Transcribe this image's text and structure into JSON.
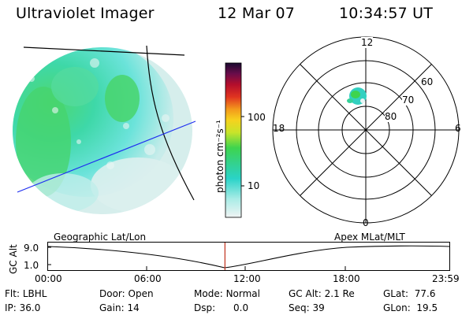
{
  "header": {
    "title": "Ultraviolet Imager",
    "date": "12 Mar 07",
    "time": "10:34:57 UT"
  },
  "colorbar": {
    "unit_label": "photon cm⁻²s⁻¹",
    "ticks": [
      "100",
      "10"
    ]
  },
  "polar": {
    "mlt_labels": {
      "top": "12",
      "left": "18",
      "right": "6",
      "bottom": "0"
    },
    "lat_labels": [
      "60",
      "70",
      "80"
    ]
  },
  "timeline": {
    "left_caption": "Geographic Lat/Lon",
    "right_caption": "Apex MLat/MLT",
    "y_axis_label": "GC Alt",
    "y_ticks": [
      "9.0",
      "1.0"
    ],
    "x_ticks": [
      "00:00",
      "06:00",
      "12:00",
      "18:00",
      "23:59"
    ],
    "current_time_fraction": 0.4409
  },
  "info": {
    "row1": [
      {
        "label": "Flt:",
        "value": "LBHL"
      },
      {
        "label": "Door:",
        "value": "Open"
      },
      {
        "label": "Mode:",
        "value": "Normal"
      },
      {
        "label": "GC Alt:",
        "value": "2.1 Re"
      },
      {
        "label": "GLat:",
        "value": "77.6"
      }
    ],
    "row2": [
      {
        "label": "IP:",
        "value": "36.0"
      },
      {
        "label": "Gain:",
        "value": "14"
      },
      {
        "label": "Dsp:",
        "value": "0.0"
      },
      {
        "label": "Seq:",
        "value": "39"
      },
      {
        "label": "GLon:",
        "value": "19.5"
      }
    ]
  }
}
